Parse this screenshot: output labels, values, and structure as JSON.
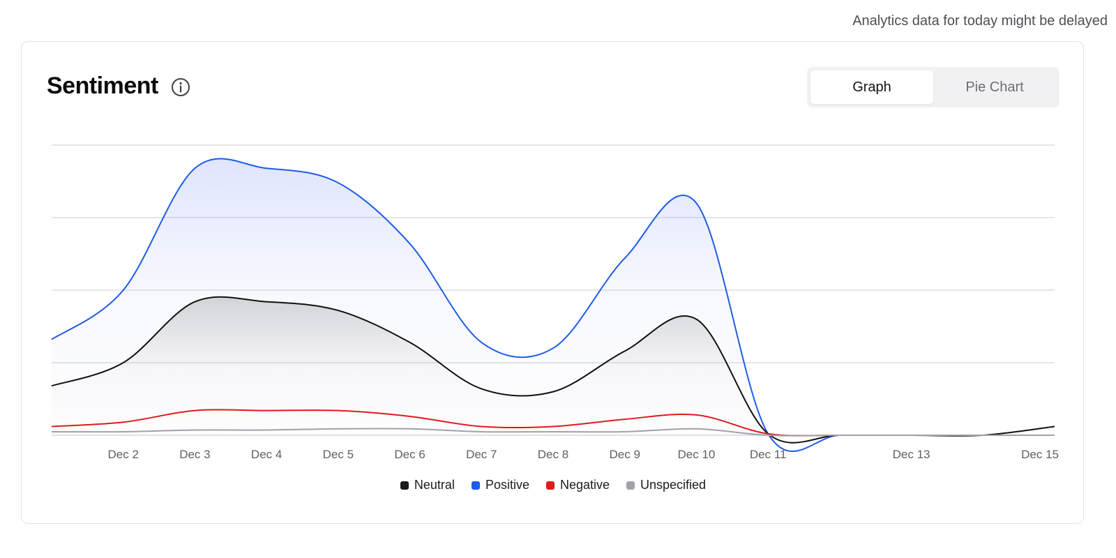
{
  "notice": "Analytics data for today might be delayed",
  "card": {
    "title": "Sentiment",
    "info_icon": "info-circle-icon",
    "toggle": {
      "graph_label": "Graph",
      "pie_label": "Pie Chart",
      "active": "graph"
    }
  },
  "chart_data": {
    "type": "area",
    "x_labels": [
      "Dec 2",
      "Dec 3",
      "Dec 4",
      "Dec 5",
      "Dec 6",
      "Dec 7",
      "Dec 8",
      "Dec 9",
      "Dec 10",
      "Dec 11",
      "Dec 13",
      "Dec 15"
    ],
    "x": [
      "Dec 1",
      "Dec 2",
      "Dec 3",
      "Dec 4",
      "Dec 5",
      "Dec 6",
      "Dec 7",
      "Dec 8",
      "Dec 9",
      "Dec 10",
      "Dec 11",
      "Dec 12",
      "Dec 13",
      "Dec 14",
      "Dec 15"
    ],
    "ylim": [
      0,
      100
    ],
    "grid": true,
    "y_tick_labels_shown": false,
    "legend_position": "bottom-center",
    "series": [
      {
        "name": "Neutral",
        "color": "#111111",
        "fill": true,
        "values": [
          17,
          25,
          46,
          46,
          43,
          32,
          16,
          15,
          29,
          40,
          0.5,
          0,
          0,
          0,
          3
        ]
      },
      {
        "name": "Positive",
        "color": "#1d5ce6",
        "fill": true,
        "values": [
          33,
          50,
          92,
          92,
          87,
          66,
          32,
          30,
          61,
          80,
          0.5,
          0,
          0,
          0,
          0
        ]
      },
      {
        "name": "Negative",
        "color": "#e0191f",
        "fill": false,
        "values": [
          3,
          4.5,
          8.5,
          8.5,
          8.5,
          6.5,
          3,
          3,
          5.5,
          7,
          0.5,
          0,
          0,
          0,
          0
        ]
      },
      {
        "name": "Unspecified",
        "color": "#a1a1aa",
        "fill": false,
        "values": [
          1.2,
          1.2,
          1.8,
          1.8,
          2.2,
          2.2,
          1.2,
          1.2,
          1.2,
          2.2,
          0,
          0,
          0,
          0,
          0
        ]
      }
    ]
  }
}
